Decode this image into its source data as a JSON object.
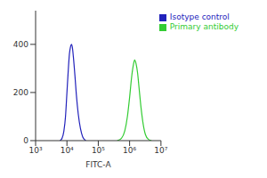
{
  "chart_data": {
    "type": "line",
    "x_label": "FITC-A",
    "log": "x",
    "xlim": [
      1000,
      10000000
    ],
    "xticks": [
      {
        "value": 1000,
        "label": "10³"
      },
      {
        "value": 10000,
        "label": "10⁴"
      },
      {
        "value": 100000,
        "label": "10⁵"
      },
      {
        "value": 1000000,
        "label": "10⁶"
      },
      {
        "value": 10000000,
        "label": "10⁷"
      }
    ],
    "ylim": [
      0,
      540
    ],
    "yticks": [
      0,
      200,
      400
    ],
    "legend": "upper right",
    "series": [
      {
        "name": "Isotype control",
        "color": "#2222bb",
        "x": [
          6000,
          7000,
          8000,
          9000,
          10000,
          11000,
          12000,
          13000,
          14000,
          15000,
          16000,
          18000,
          20000,
          23000,
          27000,
          32000,
          40000
        ],
        "values": [
          0,
          10,
          40,
          100,
          200,
          290,
          360,
          390,
          400,
          385,
          350,
          270,
          190,
          110,
          50,
          15,
          0
        ]
      },
      {
        "name": "Primary antibody",
        "color": "#33cc33",
        "x": [
          400000,
          550000,
          700000,
          850000,
          1000000,
          1150000,
          1300000,
          1450000,
          1600000,
          1800000,
          2000000,
          2300000,
          2700000,
          3200000,
          4000000,
          5000000
        ],
        "values": [
          0,
          10,
          40,
          100,
          180,
          260,
          310,
          335,
          320,
          280,
          220,
          140,
          70,
          25,
          5,
          0
        ]
      }
    ]
  }
}
